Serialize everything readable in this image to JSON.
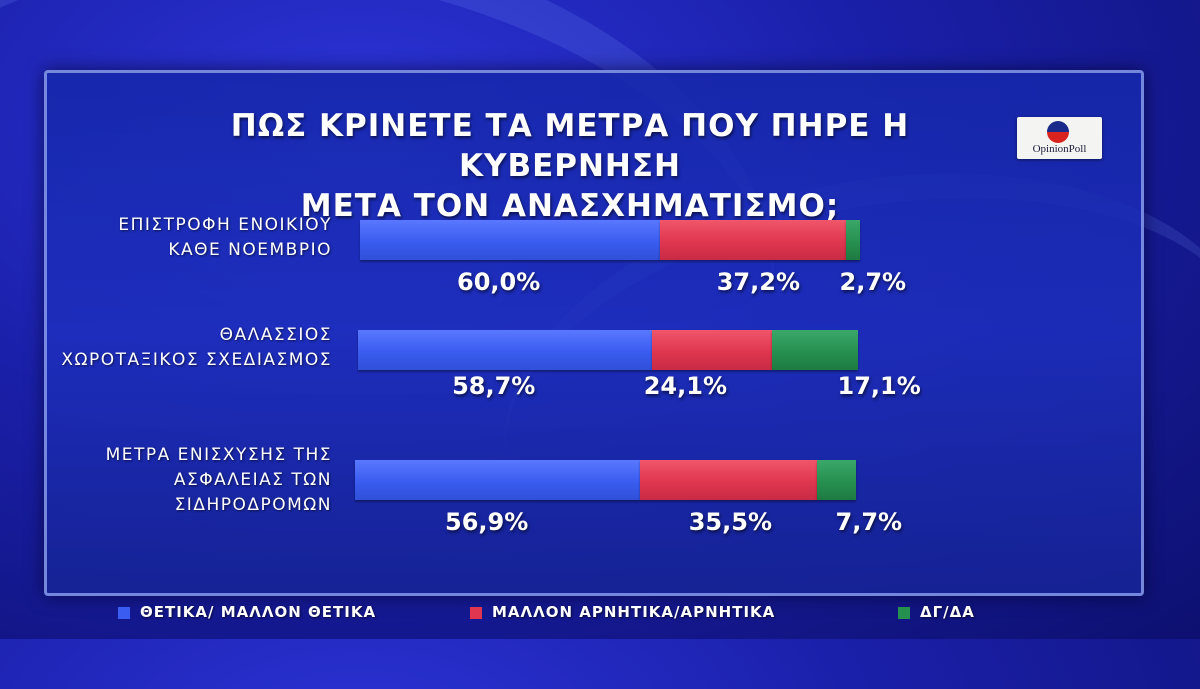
{
  "colors": {
    "positive": "#3a5cf0",
    "negative": "#e03650",
    "dk": "#26904f"
  },
  "logo": {
    "text": "OpinionPoll",
    "icon": "opinionpoll-logo-icon"
  },
  "chart_data": {
    "type": "bar",
    "orientation": "horizontal-stacked",
    "title": "ΠΩΣ ΚΡΙΝΕΤΕ ΤΑ ΜΕΤΡΑ ΠΟΥ ΠΗΡΕ Η ΚΥΒΕΡΝΗΣΗ",
    "subtitle": "ΜΕΤΑ ΤΟΝ ΑΝΑΣΧΗΜΑΤΙΣΜΟ;",
    "categories": [
      "ΕΠΙΣΤΡΟΦΗ ΕΝΟΙΚΙΟΥ\nΚΑΘΕ ΝΟΕΜΒΡΙΟ",
      "ΘΑΛΑΣΣΙΟΣ\nΧΩΡΟΤΑΞΙΚΟΣ ΣΧΕΔΙΑΣΜΟΣ",
      "ΜΕΤΡΑ ΕΝΙΣΧΥΣΗΣ ΤΗΣ\nΑΣΦΑΛΕΙΑΣ ΤΩΝ\nΣΙΔΗΡΟΔΡΟΜΩΝ"
    ],
    "series": [
      {
        "name": "ΘΕΤΙΚΑ/ ΜΑΛΛΟΝ ΘΕΤΙΚΑ",
        "values": [
          60.0,
          58.7,
          56.9
        ],
        "labels": [
          "60,0%",
          "58,7%",
          "56,9%"
        ]
      },
      {
        "name": "ΜΑΛΛΟΝ ΑΡΝΗΤΙΚΑ/ΑΡΝΗΤΙΚΑ",
        "values": [
          37.2,
          24.1,
          35.5
        ],
        "labels": [
          "37,2%",
          "24,1%",
          "35,5%"
        ]
      },
      {
        "name": "ΔΓ/ΔΑ",
        "values": [
          2.7,
          17.1,
          7.7
        ],
        "labels": [
          "2,7%",
          "17,1%",
          "7,7%"
        ]
      }
    ],
    "legend": "bottom"
  }
}
